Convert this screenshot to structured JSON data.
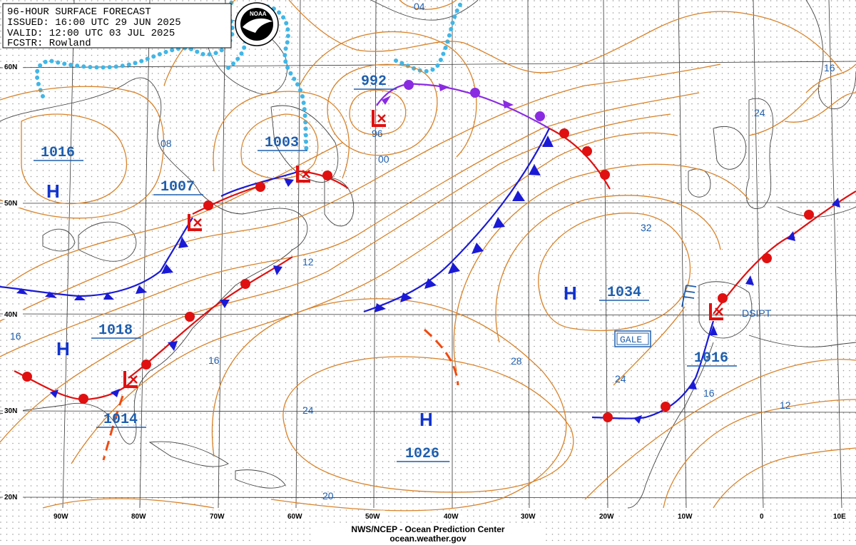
{
  "header": {
    "line1": "96-HOUR SURFACE FORECAST",
    "line2": "ISSUED: 16:00 UTC 29 JUN 2025",
    "line3": "VALID:  12:00 UTC 03 JUL 2025",
    "line4": "FCSTR: Rowland",
    "logo_text": "NOAA"
  },
  "colors": {
    "isobar": "#d8832a",
    "label": "#1f5fae",
    "cold_front": "#1a1ad6",
    "warm_front": "#e01010",
    "occluded_front": "#8a2be2",
    "trough": "#f04a10",
    "ice_edge": "#41b6e6",
    "high_letter": "#1133cc",
    "low_letter": "#e01010"
  },
  "latitudes": [
    "60N",
    "50N",
    "40N",
    "30N",
    "20N"
  ],
  "longitudes": [
    "90W",
    "80W",
    "70W",
    "60W",
    "50W",
    "40W",
    "30W",
    "20W",
    "10W",
    "0",
    "10E"
  ],
  "isobar_labels": [
    "04",
    "08",
    "96",
    "00",
    "12",
    "16",
    "16",
    "24",
    "32",
    "28",
    "24",
    "20",
    "24",
    "16",
    "12",
    "16"
  ],
  "highs": [
    {
      "letter": "H",
      "pressure": "1016"
    },
    {
      "letter": "H",
      "pressure": "1018"
    },
    {
      "letter": "H",
      "pressure": "1026"
    },
    {
      "letter": "H",
      "pressure": "1034"
    }
  ],
  "lows": [
    {
      "pressure": "992"
    },
    {
      "pressure": "1003"
    },
    {
      "pressure": "1007"
    },
    {
      "pressure": "1014"
    },
    {
      "pressure": "1016"
    }
  ],
  "annotations": {
    "dsipt": "DSIPT",
    "gale": "GALE"
  },
  "footer": {
    "line1": "NWS/NCEP - Ocean Prediction Center",
    "line2": "ocean.weather.gov"
  }
}
